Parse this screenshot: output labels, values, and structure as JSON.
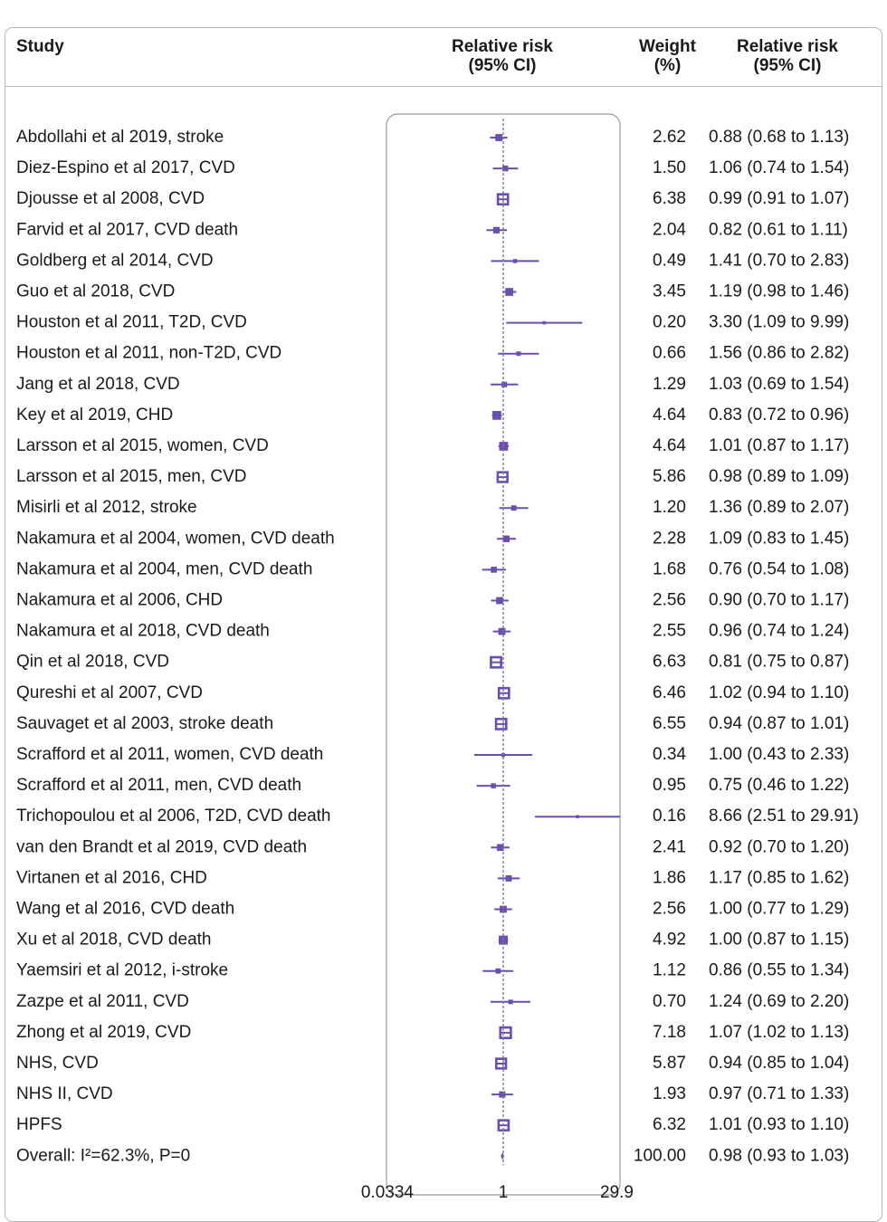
{
  "headers": {
    "study": "Study",
    "rr_plot": "Relative risk\n(95% CI)",
    "weight": "Weight\n(%)",
    "rr_text": "Relative risk\n(95% CI)"
  },
  "colors": {
    "marker": "#6a4fb0",
    "axis_line": "#7a7a9a",
    "border": "#b8b8b8",
    "text": "#1a1a1a"
  },
  "chart_data": {
    "type": "forest",
    "x_scale": "log",
    "xlim": [
      0.0334,
      29.9
    ],
    "x_ticks": [
      "0.0334",
      "1",
      "29.9"
    ],
    "reference_line": 1,
    "studies": [
      {
        "label": "Abdollahi et al 2019, stroke",
        "rr": 0.88,
        "lo": 0.68,
        "hi": 1.13,
        "weight": "2.62",
        "ci_text": "0.88 (0.68 to 1.13)"
      },
      {
        "label": "Diez-Espino et al 2017, CVD",
        "rr": 1.06,
        "lo": 0.74,
        "hi": 1.54,
        "weight": "1.50",
        "ci_text": "1.06 (0.74 to 1.54)"
      },
      {
        "label": "Djousse et al 2008, CVD",
        "rr": 0.99,
        "lo": 0.91,
        "hi": 1.07,
        "weight": "6.38",
        "ci_text": "0.99 (0.91 to 1.07)"
      },
      {
        "label": "Farvid et al 2017, CVD death",
        "rr": 0.82,
        "lo": 0.61,
        "hi": 1.11,
        "weight": "2.04",
        "ci_text": "0.82 (0.61 to 1.11)"
      },
      {
        "label": "Goldberg et al 2014, CVD",
        "rr": 1.41,
        "lo": 0.7,
        "hi": 2.83,
        "weight": "0.49",
        "ci_text": "1.41 (0.70 to 2.83)"
      },
      {
        "label": "Guo et al 2018, CVD",
        "rr": 1.19,
        "lo": 0.98,
        "hi": 1.46,
        "weight": "3.45",
        "ci_text": "1.19 (0.98 to 1.46)"
      },
      {
        "label": "Houston et al 2011, T2D, CVD",
        "rr": 3.3,
        "lo": 1.09,
        "hi": 9.99,
        "weight": "0.20",
        "ci_text": "3.30 (1.09 to 9.99)"
      },
      {
        "label": "Houston et al 2011, non-T2D, CVD",
        "rr": 1.56,
        "lo": 0.86,
        "hi": 2.82,
        "weight": "0.66",
        "ci_text": "1.56 (0.86 to 2.82)"
      },
      {
        "label": "Jang et al 2018, CVD",
        "rr": 1.03,
        "lo": 0.69,
        "hi": 1.54,
        "weight": "1.29",
        "ci_text": "1.03 (0.69 to 1.54)"
      },
      {
        "label": "Key et al 2019, CHD",
        "rr": 0.83,
        "lo": 0.72,
        "hi": 0.96,
        "weight": "4.64",
        "ci_text": "0.83 (0.72 to 0.96)"
      },
      {
        "label": "Larsson et al 2015, women, CVD",
        "rr": 1.01,
        "lo": 0.87,
        "hi": 1.17,
        "weight": "4.64",
        "ci_text": "1.01 (0.87 to 1.17)"
      },
      {
        "label": "Larsson et al 2015, men, CVD",
        "rr": 0.98,
        "lo": 0.89,
        "hi": 1.09,
        "weight": "5.86",
        "ci_text": "0.98 (0.89 to 1.09)"
      },
      {
        "label": "Misirli et al 2012, stroke",
        "rr": 1.36,
        "lo": 0.89,
        "hi": 2.07,
        "weight": "1.20",
        "ci_text": "1.36 (0.89 to 2.07)"
      },
      {
        "label": "Nakamura et al 2004, women, CVD death",
        "rr": 1.09,
        "lo": 0.83,
        "hi": 1.45,
        "weight": "2.28",
        "ci_text": "1.09 (0.83 to 1.45)"
      },
      {
        "label": "Nakamura et al 2004, men, CVD death",
        "rr": 0.76,
        "lo": 0.54,
        "hi": 1.08,
        "weight": "1.68",
        "ci_text": "0.76 (0.54 to 1.08)"
      },
      {
        "label": "Nakamura et al 2006, CHD",
        "rr": 0.9,
        "lo": 0.7,
        "hi": 1.17,
        "weight": "2.56",
        "ci_text": "0.90 (0.70 to 1.17)"
      },
      {
        "label": "Nakamura et al 2018, CVD death",
        "rr": 0.96,
        "lo": 0.74,
        "hi": 1.24,
        "weight": "2.55",
        "ci_text": "0.96 (0.74 to 1.24)"
      },
      {
        "label": "Qin et al 2018, CVD",
        "rr": 0.81,
        "lo": 0.75,
        "hi": 0.87,
        "weight": "6.63",
        "ci_text": "0.81 (0.75 to 0.87)"
      },
      {
        "label": "Qureshi et al 2007, CVD",
        "rr": 1.02,
        "lo": 0.94,
        "hi": 1.1,
        "weight": "6.46",
        "ci_text": "1.02 (0.94 to 1.10)"
      },
      {
        "label": "Sauvaget et al 2003, stroke death",
        "rr": 0.94,
        "lo": 0.87,
        "hi": 1.01,
        "weight": "6.55",
        "ci_text": "0.94 (0.87 to 1.01)"
      },
      {
        "label": "Scrafford et al 2011, women, CVD death",
        "rr": 1.0,
        "lo": 0.43,
        "hi": 2.33,
        "weight": "0.34",
        "ci_text": "1.00 (0.43 to 2.33)"
      },
      {
        "label": "Scrafford et al 2011, men, CVD death",
        "rr": 0.75,
        "lo": 0.46,
        "hi": 1.22,
        "weight": "0.95",
        "ci_text": "0.75 (0.46 to 1.22)"
      },
      {
        "label": "Trichopoulou et al 2006, T2D, CVD death",
        "rr": 8.66,
        "lo": 2.51,
        "hi": 29.91,
        "weight": "0.16",
        "ci_text": "8.66 (2.51 to 29.91)"
      },
      {
        "label": "van den Brandt et al 2019, CVD death",
        "rr": 0.92,
        "lo": 0.7,
        "hi": 1.2,
        "weight": "2.41",
        "ci_text": "0.92 (0.70 to 1.20)"
      },
      {
        "label": "Virtanen et al 2016, CHD",
        "rr": 1.17,
        "lo": 0.85,
        "hi": 1.62,
        "weight": "1.86",
        "ci_text": "1.17 (0.85 to 1.62)"
      },
      {
        "label": "Wang et al 2016, CVD death",
        "rr": 1.0,
        "lo": 0.77,
        "hi": 1.29,
        "weight": "2.56",
        "ci_text": "1.00 (0.77 to 1.29)"
      },
      {
        "label": "Xu et al 2018, CVD death",
        "rr": 1.0,
        "lo": 0.87,
        "hi": 1.15,
        "weight": "4.92",
        "ci_text": "1.00 (0.87 to 1.15)"
      },
      {
        "label": "Yaemsiri et al 2012, i-stroke",
        "rr": 0.86,
        "lo": 0.55,
        "hi": 1.34,
        "weight": "1.12",
        "ci_text": "0.86 (0.55 to 1.34)"
      },
      {
        "label": "Zazpe et al 2011, CVD",
        "rr": 1.24,
        "lo": 0.69,
        "hi": 2.2,
        "weight": "0.70",
        "ci_text": "1.24 (0.69 to 2.20)"
      },
      {
        "label": "Zhong et al 2019, CVD",
        "rr": 1.07,
        "lo": 1.02,
        "hi": 1.13,
        "weight": "7.18",
        "ci_text": "1.07 (1.02 to 1.13)"
      },
      {
        "label": "NHS, CVD",
        "rr": 0.94,
        "lo": 0.85,
        "hi": 1.04,
        "weight": "5.87",
        "ci_text": "0.94 (0.85 to 1.04)"
      },
      {
        "label": "NHS II, CVD",
        "rr": 0.97,
        "lo": 0.71,
        "hi": 1.33,
        "weight": "1.93",
        "ci_text": "0.97 (0.71 to 1.33)"
      },
      {
        "label": "HPFS",
        "rr": 1.01,
        "lo": 0.93,
        "hi": 1.1,
        "weight": "6.32",
        "ci_text": "1.01 (0.93 to 1.10)"
      }
    ],
    "overall": {
      "label": "Overall: I²=62.3%, P=0",
      "rr": 0.98,
      "lo": 0.93,
      "hi": 1.03,
      "weight": "100.00",
      "ci_text": "0.98 (0.93 to 1.03)"
    }
  }
}
